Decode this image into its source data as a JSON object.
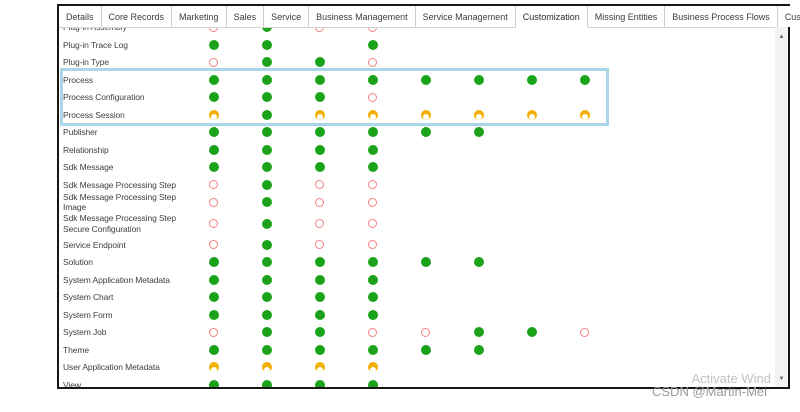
{
  "tabs": [
    {
      "label": "Details",
      "active": false
    },
    {
      "label": "Core Records",
      "active": false
    },
    {
      "label": "Marketing",
      "active": false
    },
    {
      "label": "Sales",
      "active": false
    },
    {
      "label": "Service",
      "active": false
    },
    {
      "label": "Business Management",
      "active": false
    },
    {
      "label": "Service Management",
      "active": false
    },
    {
      "label": "Customization",
      "active": true
    },
    {
      "label": "Missing Entities",
      "active": false
    },
    {
      "label": "Business Process Flows",
      "active": false
    },
    {
      "label": "Custom Entities",
      "active": false
    }
  ],
  "status_colors": {
    "green_filled": "#1aa31a",
    "red_outline": "#f58080",
    "amber_partial": "#f2b100",
    "highlight_border": "#a9d7e8"
  },
  "table": {
    "column_count": 8,
    "rows": [
      {
        "label": "Plug-in Assembly",
        "cells": [
          "r",
          "g",
          "r",
          "r",
          "",
          "",
          "",
          ""
        ],
        "clipped_top": true
      },
      {
        "label": "Plug-in Trace Log",
        "cells": [
          "g",
          "g",
          "",
          "g",
          "",
          "",
          "",
          ""
        ]
      },
      {
        "label": "Plug-in Type",
        "cells": [
          "r",
          "g",
          "g",
          "r",
          "",
          "",
          "",
          ""
        ]
      },
      {
        "label": "Process",
        "cells": [
          "g",
          "g",
          "g",
          "g",
          "g",
          "g",
          "g",
          "g"
        ],
        "highlighted": true
      },
      {
        "label": "Process Configuration",
        "cells": [
          "g",
          "g",
          "g",
          "r",
          "",
          "",
          "",
          ""
        ],
        "highlighted": true
      },
      {
        "label": "Process Session",
        "cells": [
          "y",
          "g",
          "y",
          "y",
          "y",
          "y",
          "y",
          "y"
        ],
        "highlighted": true
      },
      {
        "label": "Publisher",
        "cells": [
          "g",
          "g",
          "g",
          "g",
          "g",
          "g",
          "",
          ""
        ]
      },
      {
        "label": "Relationship",
        "cells": [
          "g",
          "g",
          "g",
          "g",
          "",
          "",
          "",
          ""
        ]
      },
      {
        "label": "Sdk Message",
        "cells": [
          "g",
          "g",
          "g",
          "g",
          "",
          "",
          "",
          ""
        ]
      },
      {
        "label": "Sdk Message Processing Step",
        "cells": [
          "r",
          "g",
          "r",
          "r",
          "",
          "",
          "",
          ""
        ]
      },
      {
        "label": "Sdk Message Processing Step Image",
        "cells": [
          "r",
          "g",
          "r",
          "r",
          "",
          "",
          "",
          ""
        ]
      },
      {
        "label": "Sdk Message Processing Step Secure Configuration",
        "cells": [
          "r",
          "g",
          "r",
          "r",
          "",
          "",
          "",
          ""
        ],
        "tall": true
      },
      {
        "label": "Service Endpoint",
        "cells": [
          "r",
          "g",
          "r",
          "r",
          "",
          "",
          "",
          ""
        ]
      },
      {
        "label": "Solution",
        "cells": [
          "g",
          "g",
          "g",
          "g",
          "g",
          "g",
          "",
          ""
        ]
      },
      {
        "label": "System Application Metadata",
        "cells": [
          "g",
          "g",
          "g",
          "g",
          "",
          "",
          "",
          ""
        ]
      },
      {
        "label": "System Chart",
        "cells": [
          "g",
          "g",
          "g",
          "g",
          "",
          "",
          "",
          ""
        ]
      },
      {
        "label": "System Form",
        "cells": [
          "g",
          "g",
          "g",
          "g",
          "",
          "",
          "",
          ""
        ]
      },
      {
        "label": "System Job",
        "cells": [
          "r",
          "g",
          "g",
          "r",
          "r",
          "g",
          "g",
          "r"
        ]
      },
      {
        "label": "Theme",
        "cells": [
          "g",
          "g",
          "g",
          "g",
          "g",
          "g",
          "",
          ""
        ]
      },
      {
        "label": "User Application Metadata",
        "cells": [
          "y",
          "y",
          "y",
          "y",
          "",
          "",
          "",
          ""
        ]
      },
      {
        "label": "View",
        "cells": [
          "g",
          "g",
          "g",
          "g",
          "",
          "",
          "",
          ""
        ]
      }
    ]
  },
  "scrollbar": {
    "up_arrow": "▲",
    "down_arrow": "▼"
  },
  "watermarks": {
    "activate": "Activate Wind",
    "csdn": "CSDN @Martin-Mei"
  }
}
